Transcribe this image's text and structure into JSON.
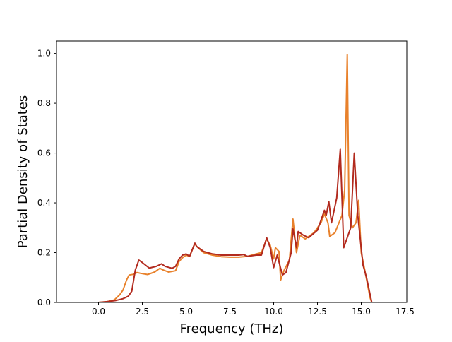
{
  "chart_data": {
    "type": "line",
    "title": "",
    "xlabel": "Frequency (THz)",
    "ylabel": "Partial Density of States",
    "xlim": [
      -2.4,
      17.6
    ],
    "ylim": [
      0.0,
      1.05
    ],
    "grid": false,
    "legend": "none",
    "xticks": [
      0.0,
      2.5,
      5.0,
      7.5,
      10.0,
      12.5,
      15.0,
      17.5
    ],
    "xtick_labels": [
      "0.0",
      "2.5",
      "5.0",
      "7.5",
      "10.0",
      "12.5",
      "15.0",
      "17.5"
    ],
    "yticks": [
      0.0,
      0.2,
      0.4,
      0.6,
      0.8,
      1.0
    ],
    "ytick_labels": [
      "0.0",
      "0.2",
      "0.4",
      "0.6",
      "0.8",
      "1.0"
    ],
    "series": [
      {
        "color": "#e8812b",
        "points": [
          [
            -1.6,
            0.0
          ],
          [
            0.0,
            0.0
          ],
          [
            0.5,
            0.003
          ],
          [
            0.9,
            0.01
          ],
          [
            1.2,
            0.03
          ],
          [
            1.4,
            0.05
          ],
          [
            1.6,
            0.09
          ],
          [
            1.75,
            0.11
          ],
          [
            2.0,
            0.113
          ],
          [
            2.2,
            0.12
          ],
          [
            2.4,
            0.117
          ],
          [
            2.8,
            0.112
          ],
          [
            3.2,
            0.122
          ],
          [
            3.5,
            0.137
          ],
          [
            3.7,
            0.13
          ],
          [
            4.0,
            0.122
          ],
          [
            4.4,
            0.127
          ],
          [
            4.6,
            0.165
          ],
          [
            4.8,
            0.18
          ],
          [
            5.0,
            0.19
          ],
          [
            5.2,
            0.185
          ],
          [
            5.5,
            0.237
          ],
          [
            5.6,
            0.225
          ],
          [
            6.0,
            0.2
          ],
          [
            6.5,
            0.19
          ],
          [
            7.0,
            0.184
          ],
          [
            7.5,
            0.182
          ],
          [
            8.0,
            0.182
          ],
          [
            8.5,
            0.185
          ],
          [
            9.0,
            0.195
          ],
          [
            9.3,
            0.2
          ],
          [
            9.6,
            0.255
          ],
          [
            9.8,
            0.23
          ],
          [
            10.0,
            0.175
          ],
          [
            10.1,
            0.22
          ],
          [
            10.3,
            0.205
          ],
          [
            10.4,
            0.09
          ],
          [
            10.6,
            0.13
          ],
          [
            10.9,
            0.17
          ],
          [
            11.1,
            0.335
          ],
          [
            11.3,
            0.2
          ],
          [
            11.5,
            0.27
          ],
          [
            11.8,
            0.255
          ],
          [
            12.3,
            0.28
          ],
          [
            12.7,
            0.32
          ],
          [
            12.9,
            0.355
          ],
          [
            13.1,
            0.32
          ],
          [
            13.2,
            0.265
          ],
          [
            13.5,
            0.28
          ],
          [
            13.9,
            0.35
          ],
          [
            14.05,
            0.45
          ],
          [
            14.2,
            0.995
          ],
          [
            14.3,
            0.35
          ],
          [
            14.5,
            0.3
          ],
          [
            14.7,
            0.32
          ],
          [
            14.85,
            0.41
          ],
          [
            15.0,
            0.2
          ],
          [
            15.2,
            0.13
          ],
          [
            15.5,
            0.02
          ],
          [
            15.6,
            0.0
          ],
          [
            17.0,
            0.0
          ]
        ]
      },
      {
        "color": "#b22a1e",
        "points": [
          [
            -1.6,
            0.0
          ],
          [
            0.0,
            0.0
          ],
          [
            0.5,
            0.003
          ],
          [
            1.0,
            0.008
          ],
          [
            1.4,
            0.015
          ],
          [
            1.7,
            0.025
          ],
          [
            1.9,
            0.045
          ],
          [
            2.1,
            0.13
          ],
          [
            2.3,
            0.17
          ],
          [
            2.5,
            0.16
          ],
          [
            2.9,
            0.138
          ],
          [
            3.3,
            0.145
          ],
          [
            3.6,
            0.155
          ],
          [
            3.8,
            0.145
          ],
          [
            4.2,
            0.137
          ],
          [
            4.4,
            0.145
          ],
          [
            4.6,
            0.175
          ],
          [
            4.8,
            0.19
          ],
          [
            5.0,
            0.195
          ],
          [
            5.2,
            0.185
          ],
          [
            5.5,
            0.238
          ],
          [
            5.6,
            0.225
          ],
          [
            6.0,
            0.205
          ],
          [
            6.5,
            0.195
          ],
          [
            7.0,
            0.19
          ],
          [
            7.5,
            0.19
          ],
          [
            8.0,
            0.19
          ],
          [
            8.3,
            0.192
          ],
          [
            8.5,
            0.185
          ],
          [
            9.0,
            0.19
          ],
          [
            9.3,
            0.19
          ],
          [
            9.6,
            0.26
          ],
          [
            9.8,
            0.22
          ],
          [
            10.0,
            0.14
          ],
          [
            10.2,
            0.19
          ],
          [
            10.5,
            0.11
          ],
          [
            10.7,
            0.12
          ],
          [
            11.0,
            0.2
          ],
          [
            11.1,
            0.295
          ],
          [
            11.3,
            0.22
          ],
          [
            11.4,
            0.285
          ],
          [
            11.7,
            0.27
          ],
          [
            12.0,
            0.26
          ],
          [
            12.5,
            0.29
          ],
          [
            12.9,
            0.37
          ],
          [
            13.0,
            0.35
          ],
          [
            13.15,
            0.405
          ],
          [
            13.3,
            0.32
          ],
          [
            13.6,
            0.42
          ],
          [
            13.8,
            0.615
          ],
          [
            14.0,
            0.22
          ],
          [
            14.4,
            0.3
          ],
          [
            14.6,
            0.6
          ],
          [
            14.8,
            0.35
          ],
          [
            14.95,
            0.25
          ],
          [
            15.1,
            0.15
          ],
          [
            15.3,
            0.1
          ],
          [
            15.6,
            0.0
          ],
          [
            17.0,
            0.0
          ]
        ]
      }
    ]
  }
}
